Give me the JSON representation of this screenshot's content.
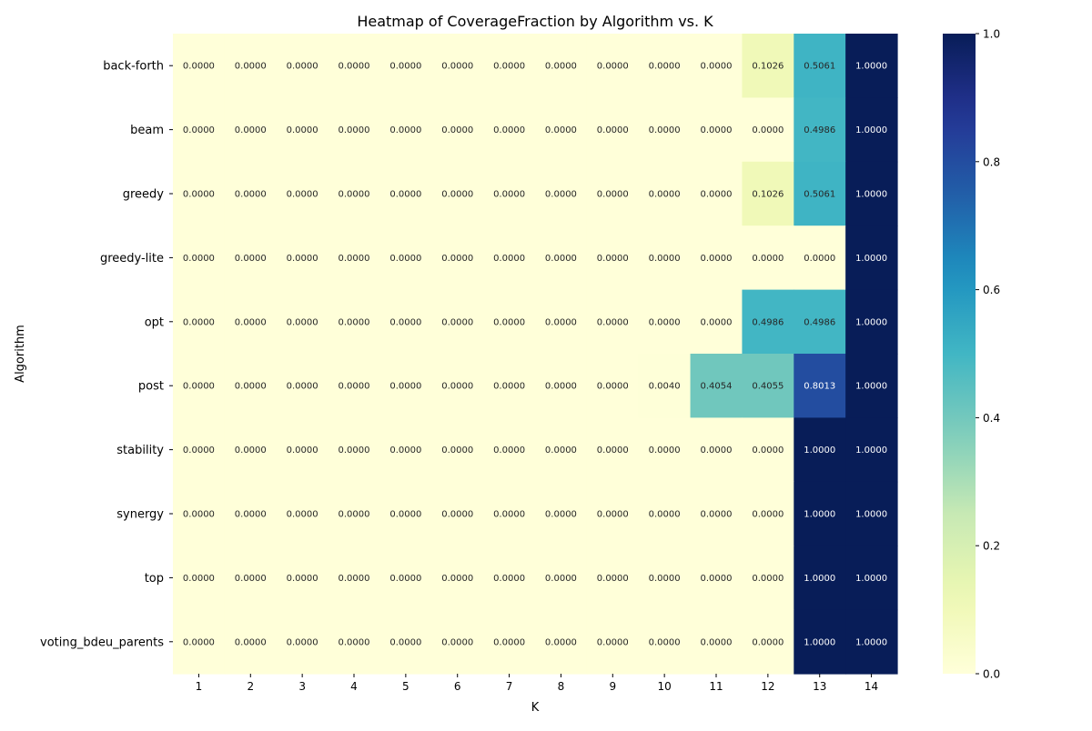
{
  "chart_data": {
    "type": "heatmap",
    "title": "Heatmap of CoverageFraction by Algorithm vs. K",
    "xlabel": "K",
    "ylabel": "Algorithm",
    "x": [
      "1",
      "2",
      "3",
      "4",
      "5",
      "6",
      "7",
      "8",
      "9",
      "10",
      "11",
      "12",
      "13",
      "14"
    ],
    "y": [
      "back-forth",
      "beam",
      "greedy",
      "greedy-lite",
      "opt",
      "post",
      "stability",
      "synergy",
      "top",
      "voting_bdeu_parents"
    ],
    "values": [
      [
        0,
        0,
        0,
        0,
        0,
        0,
        0,
        0,
        0,
        0,
        0,
        0.1026,
        0.5061,
        1.0
      ],
      [
        0,
        0,
        0,
        0,
        0,
        0,
        0,
        0,
        0,
        0,
        0,
        0,
        0.4986,
        1.0
      ],
      [
        0,
        0,
        0,
        0,
        0,
        0,
        0,
        0,
        0,
        0,
        0,
        0.1026,
        0.5061,
        1.0
      ],
      [
        0,
        0,
        0,
        0,
        0,
        0,
        0,
        0,
        0,
        0,
        0,
        0,
        0,
        1.0
      ],
      [
        0,
        0,
        0,
        0,
        0,
        0,
        0,
        0,
        0,
        0,
        0,
        0.4986,
        0.4986,
        1.0
      ],
      [
        0,
        0,
        0,
        0,
        0,
        0,
        0,
        0,
        0,
        0.004,
        0.4054,
        0.4055,
        0.8013,
        1.0
      ],
      [
        0,
        0,
        0,
        0,
        0,
        0,
        0,
        0,
        0,
        0,
        0,
        0,
        1.0,
        1.0
      ],
      [
        0,
        0,
        0,
        0,
        0,
        0,
        0,
        0,
        0,
        0,
        0,
        0,
        1.0,
        1.0
      ],
      [
        0,
        0,
        0,
        0,
        0,
        0,
        0,
        0,
        0,
        0,
        0,
        0,
        1.0,
        1.0
      ],
      [
        0,
        0,
        0,
        0,
        0,
        0,
        0,
        0,
        0,
        0,
        0,
        0,
        1.0,
        1.0
      ]
    ],
    "value_format_decimals": 4,
    "colormap": "YlGnBu",
    "color_range": [
      0,
      1
    ],
    "colorbar_ticks": [
      "0.0",
      "0.2",
      "0.4",
      "0.6",
      "0.8",
      "1.0"
    ],
    "colorbar_tick_values": [
      0,
      0.2,
      0.4,
      0.6,
      0.8,
      1.0
    ],
    "grid": false
  }
}
